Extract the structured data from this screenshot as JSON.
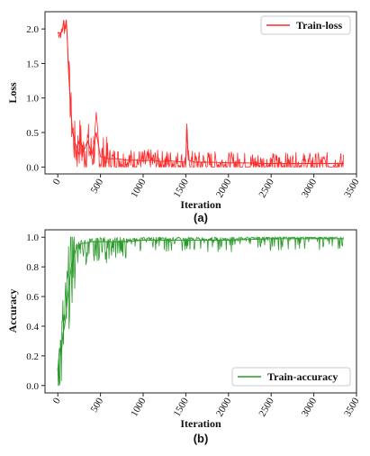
{
  "chart_data": [
    {
      "type": "line",
      "caption": "(a)",
      "xlabel": "Iteration",
      "ylabel": "Loss",
      "xlim": [
        -150,
        3500
      ],
      "ylim": [
        -0.1,
        2.25
      ],
      "xticks": [
        0,
        500,
        1000,
        1500,
        2000,
        2500,
        3000,
        3500
      ],
      "yticks": [
        0.0,
        0.5,
        1.0,
        1.5,
        2.0
      ],
      "ytick_labels": [
        "0.0",
        "0.5",
        "1.0",
        "1.5",
        "2.0"
      ],
      "grid": false,
      "legend_position": "top-right",
      "series": [
        {
          "name": "Train-loss",
          "color": "#ff2a2a",
          "x": [
            0,
            30,
            50,
            70,
            80,
            100,
            110,
            120,
            130,
            150,
            170,
            200,
            230,
            260,
            300,
            350,
            400,
            450,
            500,
            600,
            700,
            800,
            900,
            1000,
            1100,
            1200,
            1300,
            1400,
            1500,
            1510,
            1530,
            1600,
            1800,
            2000,
            2200,
            2400,
            2500,
            2700,
            2900,
            3000,
            3200,
            3350
          ],
          "y": [
            1.95,
            1.94,
            1.96,
            2.12,
            1.98,
            2.13,
            1.9,
            1.6,
            1.3,
            0.9,
            0.55,
            0.35,
            0.28,
            0.42,
            0.22,
            0.38,
            0.18,
            0.5,
            0.15,
            0.12,
            0.12,
            0.1,
            0.1,
            0.09,
            0.1,
            0.08,
            0.09,
            0.08,
            0.07,
            0.55,
            0.1,
            0.07,
            0.07,
            0.06,
            0.06,
            0.05,
            0.05,
            0.05,
            0.05,
            0.05,
            0.05,
            0.05
          ]
        }
      ]
    },
    {
      "type": "line",
      "caption": "(b)",
      "xlabel": "Iteration",
      "ylabel": "Accuracy",
      "xlim": [
        -150,
        3500
      ],
      "ylim": [
        -0.05,
        1.05
      ],
      "xticks": [
        0,
        500,
        1000,
        1500,
        2000,
        2500,
        3000,
        3500
      ],
      "yticks": [
        0.0,
        0.2,
        0.4,
        0.6,
        0.8,
        1.0
      ],
      "ytick_labels": [
        "0.0",
        "0.2",
        "0.4",
        "0.6",
        "0.8",
        "1.0"
      ],
      "grid": false,
      "legend_position": "bottom-right",
      "series": [
        {
          "name": "Train-accuracy",
          "color": "#2a9a2a",
          "x": [
            0,
            20,
            40,
            60,
            80,
            100,
            120,
            140,
            160,
            180,
            200,
            220,
            250,
            300,
            350,
            400,
            500,
            600,
            800,
            1000,
            1200,
            1500,
            1800,
            2000,
            2500,
            3000,
            3350
          ],
          "y": [
            0.1,
            0.25,
            0.2,
            0.35,
            0.4,
            0.5,
            0.62,
            0.72,
            0.8,
            0.86,
            0.9,
            0.93,
            0.95,
            0.96,
            0.96,
            0.97,
            0.97,
            0.97,
            0.97,
            0.98,
            0.98,
            0.98,
            0.98,
            0.98,
            0.99,
            0.99,
            0.99
          ]
        }
      ]
    }
  ]
}
